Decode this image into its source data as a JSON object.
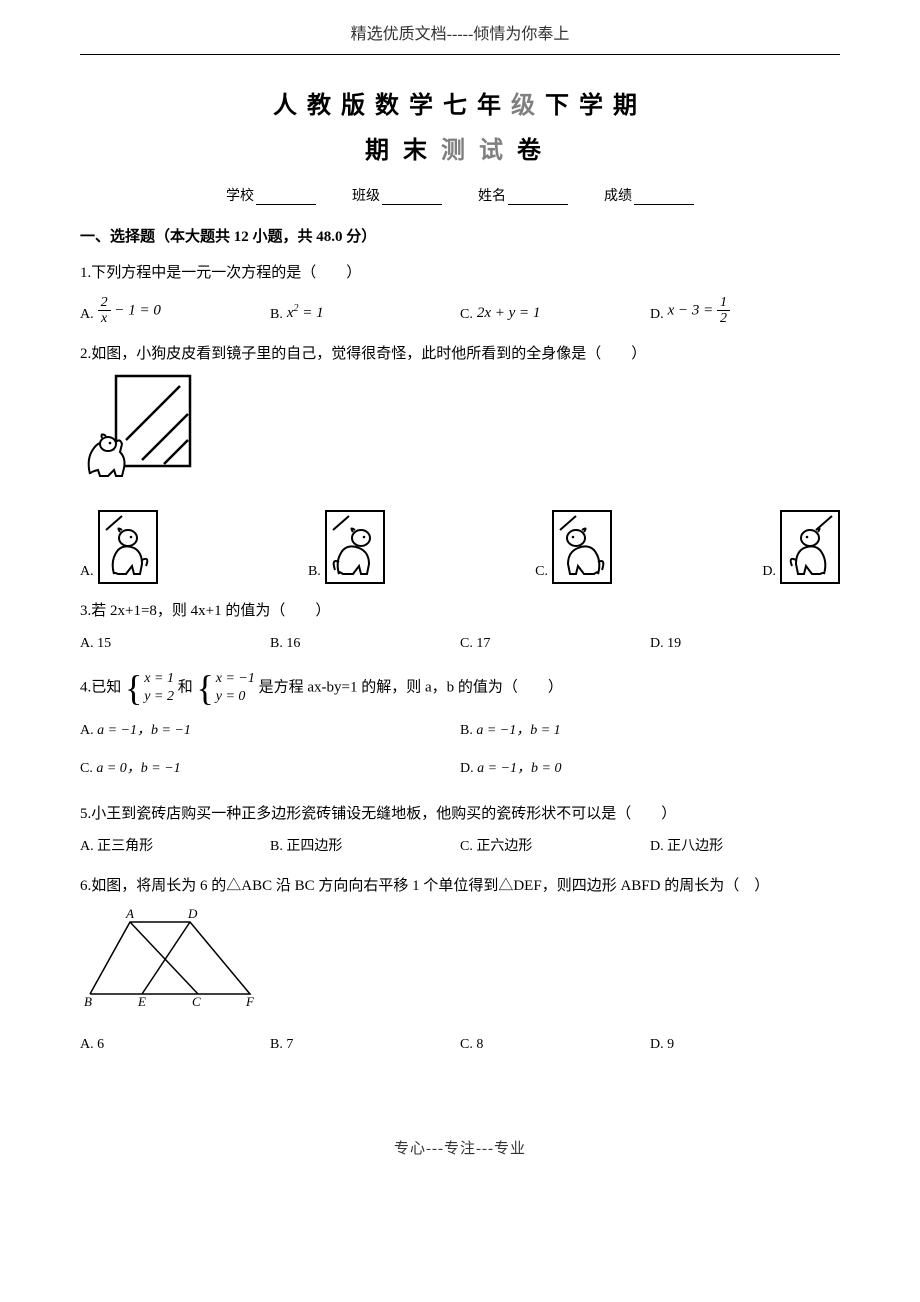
{
  "header": {
    "text": "精选优质文档-----倾情为你奉上"
  },
  "title": {
    "line1_parts": [
      {
        "t": "人",
        "c": "dark"
      },
      {
        "t": "教",
        "c": "dark"
      },
      {
        "t": "版",
        "c": "dark"
      },
      {
        "t": "数",
        "c": "dark"
      },
      {
        "t": "学",
        "c": "dark"
      },
      {
        "t": "七",
        "c": "dark"
      },
      {
        "t": "年",
        "c": "dark"
      },
      {
        "t": "级",
        "c": "light"
      },
      {
        "t": "下",
        "c": "dark"
      },
      {
        "t": "学",
        "c": "dark"
      },
      {
        "t": "期",
        "c": "dark"
      }
    ],
    "line2_parts": [
      {
        "t": "期",
        "c": "dark"
      },
      {
        "t": "末",
        "c": "dark"
      },
      {
        "t": "测",
        "c": "light"
      },
      {
        "t": "试",
        "c": "light"
      },
      {
        "t": "卷",
        "c": "dark"
      }
    ]
  },
  "meta": {
    "school": "学校",
    "class": "班级",
    "name": "姓名",
    "score": "成绩"
  },
  "section1": "一、选择题（本大题共 12 小题，共 48.0 分）",
  "q1": {
    "stem": "1.下列方程中是一元一次方程的是（　　）",
    "A_label": "A.",
    "B_label": "B.",
    "B_math": "x² = 1",
    "C_label": "C.",
    "C_math": "2x + y = 1",
    "D_label": "D."
  },
  "q2": {
    "stem": "2.如图，小狗皮皮看到镜子里的自己，觉得很奇怪，此时他所看到的全身像是（　　）",
    "A": "A.",
    "B": "B.",
    "C": "C.",
    "D": "D."
  },
  "q3": {
    "stem": "3.若 2x+1=8，则 4x+1 的值为（　　）",
    "A": "A. 15",
    "B": "B. 16",
    "C": "C. 17",
    "D": "D. 19"
  },
  "q4": {
    "prefix": "4.已知",
    "and": "和",
    "suffix": "是方程 ax-by=1 的解，则 a，b 的值为（　　）",
    "sys1_l1": "x = 1",
    "sys1_l2": "y = 2",
    "sys2_l1": "x = −1",
    "sys2_l2": "y = 0",
    "A_label": "A.",
    "A_math": "a = −1，b = −1",
    "B_label": "B.",
    "B_math": "a = −1，b = 1",
    "C_label": "C.",
    "C_math": "a = 0，b = −1",
    "D_label": "D.",
    "D_math": "a = −1，b = 0"
  },
  "q5": {
    "stem": "5.小王到瓷砖店购买一种正多边形瓷砖铺设无缝地板，他购买的瓷砖形状不可以是（　　）",
    "A": "A. 正三角形",
    "B": "B. 正四边形",
    "C": "C. 正六边形",
    "D": "D. 正八边形"
  },
  "q6": {
    "stem": "6.如图，将周长为 6 的△ABC 沿 BC 方向向右平移 1 个单位得到△DEF，则四边形 ABFD 的周长为（　）",
    "A": "A. 6",
    "B": "B. 7",
    "C": "C. 8",
    "D": "D. 9",
    "labels": {
      "A": "A",
      "B": "B",
      "C": "C",
      "D": "D",
      "E": "E",
      "F": "F"
    }
  },
  "footer": "专心---专注---专业"
}
